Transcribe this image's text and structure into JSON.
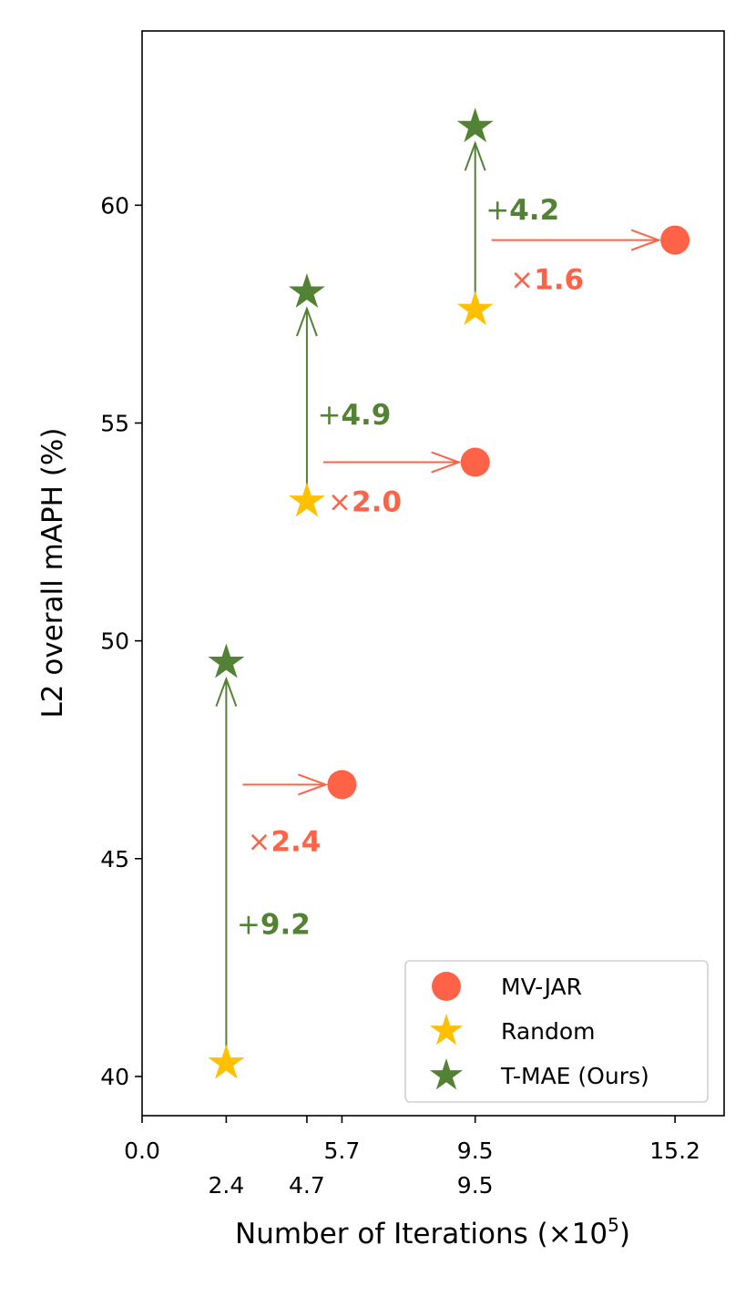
{
  "colors": {
    "mvjar": "#FF6347",
    "random": "#FFC000",
    "tmae": "#548235",
    "axis": "#000000"
  },
  "chart_data": {
    "type": "scatter",
    "xlabel": "Number of Iterations (×10",
    "xlabel_sup": "5",
    "xlabel_close": ")",
    "ylabel": "L2 overall mAPH (%)",
    "xlim": [
      0,
      16.6
    ],
    "ylim": [
      39.1,
      64.0
    ],
    "y_ticks": [
      {
        "value": 40,
        "label": "40"
      },
      {
        "value": 45,
        "label": "45"
      },
      {
        "value": 50,
        "label": "50"
      },
      {
        "value": 55,
        "label": "55"
      },
      {
        "value": 60,
        "label": "60"
      }
    ],
    "x_ticks_row1": [
      {
        "value": 0.0,
        "label": "0.0",
        "color": "#000000"
      },
      {
        "value": 5.7,
        "label": "5.7",
        "color": "#FF6347"
      },
      {
        "value": 9.5,
        "label": "9.5",
        "color": "#FF6347"
      },
      {
        "value": 15.2,
        "label": "15.2",
        "color": "#FF6347"
      }
    ],
    "x_ticks_row2": [
      {
        "value": 2.4,
        "label": "2.4",
        "color": "#548235"
      },
      {
        "value": 4.7,
        "label": "4.7",
        "color": "#548235"
      },
      {
        "value": 9.5,
        "label": "9.5",
        "color": "#548235"
      }
    ],
    "legend_position": "lower right",
    "series": [
      {
        "name": "MV-JAR",
        "marker": "circle",
        "color": "#FF6347",
        "points": [
          {
            "x": 5.7,
            "y": 46.7
          },
          {
            "x": 9.5,
            "y": 54.1
          },
          {
            "x": 15.2,
            "y": 59.2
          }
        ]
      },
      {
        "name": "Random",
        "marker": "star",
        "color": "#FFC000",
        "points": [
          {
            "x": 2.4,
            "y": 40.3
          },
          {
            "x": 4.7,
            "y": 53.2
          },
          {
            "x": 9.5,
            "y": 57.6
          }
        ]
      },
      {
        "name": "T-MAE (Ours)",
        "marker": "star",
        "color": "#548235",
        "points": [
          {
            "x": 2.4,
            "y": 49.5
          },
          {
            "x": 4.7,
            "y": 58.0
          },
          {
            "x": 9.5,
            "y": 61.8
          }
        ]
      }
    ],
    "arrows": [
      {
        "from": [
          2.4,
          40.3
        ],
        "to": [
          2.4,
          49.5
        ],
        "color": "#548235"
      },
      {
        "from": [
          4.7,
          53.2
        ],
        "to": [
          4.7,
          58.0
        ],
        "color": "#548235"
      },
      {
        "from": [
          9.5,
          57.6
        ],
        "to": [
          9.5,
          61.8
        ],
        "color": "#548235"
      },
      {
        "from": [
          2.4,
          46.7
        ],
        "to": [
          5.7,
          46.7
        ],
        "color": "#FF6347"
      },
      {
        "from": [
          4.7,
          54.1
        ],
        "to": [
          9.5,
          54.1
        ],
        "color": "#FF6347"
      },
      {
        "from": [
          9.5,
          59.2
        ],
        "to": [
          15.2,
          59.2
        ],
        "color": "#FF6347"
      }
    ],
    "annotations": [
      {
        "symbol": "+",
        "value": "9.2",
        "x": 2.7,
        "y": 43.5,
        "color": "#548235"
      },
      {
        "symbol": "×",
        "value": "2.4",
        "x": 3.0,
        "y": 45.4,
        "color": "#FF6347"
      },
      {
        "symbol": "+",
        "value": "4.9",
        "x": 5.0,
        "y": 55.2,
        "color": "#548235"
      },
      {
        "symbol": "×",
        "value": "2.0",
        "x": 5.3,
        "y": 53.2,
        "color": "#FF6347"
      },
      {
        "symbol": "+",
        "value": "4.2",
        "x": 9.8,
        "y": 59.9,
        "color": "#548235"
      },
      {
        "symbol": "×",
        "value": "1.6",
        "x": 10.5,
        "y": 58.3,
        "color": "#FF6347"
      }
    ]
  }
}
